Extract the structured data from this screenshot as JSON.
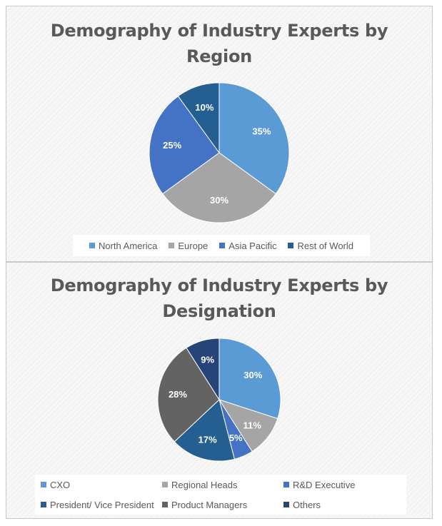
{
  "chart_data": [
    {
      "type": "pie",
      "title": "Demography of Industry Experts by Region",
      "title_lines": [
        "Demography of Industry Experts by",
        "Region"
      ],
      "categories": [
        "North America",
        "Europe",
        "Asia Pacific",
        "Rest of World"
      ],
      "values": [
        35,
        30,
        25,
        10
      ],
      "data_labels": [
        "35%",
        "30%",
        "25%",
        "10%"
      ],
      "colors": [
        "#5B9BD5",
        "#A5A5A5",
        "#4472C4",
        "#255E91"
      ],
      "legend_position": "bottom",
      "start_angle": "12 o'clock, clockwise"
    },
    {
      "type": "pie",
      "title": "Demography of Industry Experts by Designation",
      "title_lines": [
        "Demography of Industry Experts by",
        "Designation"
      ],
      "categories": [
        "CXO",
        "Regional Heads",
        "R&D Executive",
        "President/ Vice President",
        "Product Managers",
        "Others"
      ],
      "values": [
        30,
        11,
        5,
        17,
        28,
        9
      ],
      "data_labels": [
        "30%",
        "11%",
        "5%",
        "17%",
        "28%",
        "9%"
      ],
      "colors": [
        "#5B9BD5",
        "#A5A5A5",
        "#4472C4",
        "#255E91",
        "#636363",
        "#264478"
      ],
      "legend_position": "bottom",
      "start_angle": "12 o'clock, clockwise"
    }
  ]
}
